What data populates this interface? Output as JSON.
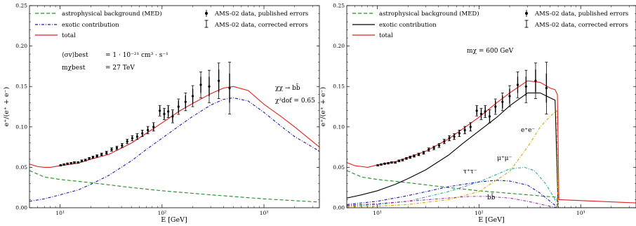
{
  "chart_data": [
    {
      "type": "line",
      "xscale": "log",
      "xlim": [
        5,
        3500
      ],
      "ylim": [
        0.0,
        0.25
      ],
      "xlabel": "E [GeV]",
      "ylabel": "e⁺/(e⁺ + e⁻)",
      "yticks": [
        "0.00",
        "0.05",
        "0.10",
        "0.15",
        "0.20",
        "0.25"
      ],
      "xticks": [
        {
          "v": 10,
          "label": "10¹"
        },
        {
          "v": 100,
          "label": "10²"
        },
        {
          "v": 1000,
          "label": "10³"
        }
      ],
      "legend": {
        "left": [
          {
            "label": "astrophysical background (MED)",
            "style": "dashed",
            "color": "#1e8c1e"
          },
          {
            "label": "exotic contribution",
            "style": "dashdot",
            "color": "#1a1aa6"
          },
          {
            "label": "total",
            "style": "solid",
            "color": "#e0201c"
          }
        ],
        "right": [
          {
            "label": "AMS-02 data, published errors",
            "marker": "dot"
          },
          {
            "label": "AMS-02 data, corrected errors",
            "marker": "bar"
          }
        ]
      },
      "annotations": {
        "sigma_label": "⟨σv⟩best",
        "sigma_value": "=  1 · 10⁻²¹ cm³ · s⁻¹",
        "mass_label": "mχbest",
        "mass_value": "=  27 TeV",
        "channel": "χχ → bb̄",
        "chi2": "χ²dof = 0.65"
      },
      "series": [
        {
          "name": "astrophysical background (MED)",
          "color": "#1e8c1e",
          "style": "dashed",
          "points": [
            [
              5,
              0.046
            ],
            [
              7,
              0.038
            ],
            [
              10,
              0.035
            ],
            [
              20,
              0.031
            ],
            [
              50,
              0.025
            ],
            [
              100,
              0.021
            ],
            [
              300,
              0.016
            ],
            [
              1000,
              0.011
            ],
            [
              3500,
              0.007
            ]
          ]
        },
        {
          "name": "exotic contribution",
          "color": "#1a1aa6",
          "style": "dashdot",
          "points": [
            [
              5,
              0.008
            ],
            [
              7,
              0.011
            ],
            [
              10,
              0.016
            ],
            [
              15,
              0.022
            ],
            [
              20,
              0.029
            ],
            [
              30,
              0.04
            ],
            [
              50,
              0.058
            ],
            [
              70,
              0.072
            ],
            [
              100,
              0.086
            ],
            [
              150,
              0.102
            ],
            [
              200,
              0.113
            ],
            [
              300,
              0.127
            ],
            [
              400,
              0.134
            ],
            [
              500,
              0.136
            ],
            [
              700,
              0.132
            ],
            [
              1000,
              0.118
            ],
            [
              1500,
              0.1
            ],
            [
              2000,
              0.088
            ],
            [
              3500,
              0.07
            ]
          ]
        },
        {
          "name": "total",
          "color": "#e0201c",
          "style": "solid",
          "points": [
            [
              5,
              0.054
            ],
            [
              6,
              0.051
            ],
            [
              7,
              0.05
            ],
            [
              8,
              0.05
            ],
            [
              10,
              0.052
            ],
            [
              15,
              0.055
            ],
            [
              20,
              0.06
            ],
            [
              30,
              0.066
            ],
            [
              50,
              0.08
            ],
            [
              70,
              0.092
            ],
            [
              100,
              0.105
            ],
            [
              150,
              0.12
            ],
            [
              200,
              0.129
            ],
            [
              300,
              0.141
            ],
            [
              400,
              0.148
            ],
            [
              500,
              0.15
            ],
            [
              700,
              0.145
            ],
            [
              1000,
              0.128
            ],
            [
              1500,
              0.112
            ],
            [
              2000,
              0.1
            ],
            [
              3500,
              0.075
            ]
          ]
        }
      ]
    },
    {
      "type": "line",
      "xscale": "log",
      "xlim": [
        5,
        3500
      ],
      "ylim": [
        0.0,
        0.25
      ],
      "xlabel": "E [GeV]",
      "ylabel": "e⁺/(e⁺ + e⁻)",
      "yticks": [
        "0.00",
        "0.05",
        "0.10",
        "0.15",
        "0.20",
        "0.25"
      ],
      "xticks": [
        {
          "v": 10,
          "label": "10¹"
        },
        {
          "v": 100,
          "label": "10²"
        },
        {
          "v": 1000,
          "label": "10³"
        }
      ],
      "legend": {
        "left": [
          {
            "label": "astrophysical background (MED)",
            "style": "dashed",
            "color": "#1e8c1e"
          },
          {
            "label": "exotic contribution",
            "style": "solid",
            "color": "#000000"
          },
          {
            "label": "total",
            "style": "solid",
            "color": "#e0201c"
          }
        ],
        "right": [
          {
            "label": "AMS-02 data, published errors",
            "marker": "dot"
          },
          {
            "label": "AMS-02 data, corrected errors",
            "marker": "bar"
          }
        ]
      },
      "annotations": {
        "mass": "mχ = 600 GeV",
        "ee": "e⁺e⁻",
        "mumu": "μ⁺μ⁻",
        "tautau": "τ⁺τ⁻",
        "bb": "bb̄"
      },
      "series": [
        {
          "name": "astrophysical background (MED)",
          "color": "#1e8c1e",
          "style": "dashed",
          "points": [
            [
              5,
              0.046
            ],
            [
              7,
              0.038
            ],
            [
              10,
              0.035
            ],
            [
              20,
              0.031
            ],
            [
              50,
              0.025
            ],
            [
              100,
              0.021
            ],
            [
              300,
              0.016
            ],
            [
              580,
              0.013
            ],
            [
              600,
              0.0
            ],
            [
              3500,
              0.0
            ]
          ]
        },
        {
          "name": "exotic contribution",
          "color": "#000000",
          "style": "solid",
          "points": [
            [
              5,
              0.012
            ],
            [
              7,
              0.016
            ],
            [
              10,
              0.021
            ],
            [
              15,
              0.029
            ],
            [
              20,
              0.036
            ],
            [
              30,
              0.047
            ],
            [
              50,
              0.065
            ],
            [
              70,
              0.08
            ],
            [
              100,
              0.095
            ],
            [
              150,
              0.112
            ],
            [
              200,
              0.126
            ],
            [
              300,
              0.142
            ],
            [
              400,
              0.142
            ],
            [
              500,
              0.136
            ],
            [
              560,
              0.133
            ],
            [
              600,
              0.0
            ],
            [
              3500,
              0.0
            ]
          ]
        },
        {
          "name": "total",
          "color": "#e0201c",
          "style": "solid",
          "points": [
            [
              5,
              0.056
            ],
            [
              6,
              0.052
            ],
            [
              7,
              0.051
            ],
            [
              8,
              0.05
            ],
            [
              10,
              0.053
            ],
            [
              15,
              0.057
            ],
            [
              20,
              0.062
            ],
            [
              30,
              0.07
            ],
            [
              50,
              0.085
            ],
            [
              70,
              0.098
            ],
            [
              100,
              0.112
            ],
            [
              150,
              0.13
            ],
            [
              200,
              0.142
            ],
            [
              300,
              0.157
            ],
            [
              400,
              0.155
            ],
            [
              500,
              0.148
            ],
            [
              560,
              0.146
            ],
            [
              590,
              0.14
            ],
            [
              610,
              0.01
            ],
            [
              3500,
              0.006
            ]
          ]
        },
        {
          "name": "e⁺e⁻",
          "color": "#d9a400",
          "style": "dashdot",
          "points": [
            [
              5,
              0.001
            ],
            [
              10,
              0.002
            ],
            [
              20,
              0.004
            ],
            [
              50,
              0.01
            ],
            [
              100,
              0.02
            ],
            [
              200,
              0.045
            ],
            [
              300,
              0.075
            ],
            [
              400,
              0.1
            ],
            [
              500,
              0.113
            ],
            [
              580,
              0.12
            ],
            [
              600,
              0.0
            ]
          ]
        },
        {
          "name": "μ⁺μ⁻",
          "color": "#1fa6a6",
          "style": "dashdot",
          "points": [
            [
              5,
              0.002
            ],
            [
              10,
              0.004
            ],
            [
              20,
              0.008
            ],
            [
              50,
              0.02
            ],
            [
              100,
              0.032
            ],
            [
              200,
              0.048
            ],
            [
              280,
              0.05
            ],
            [
              350,
              0.046
            ],
            [
              450,
              0.03
            ],
            [
              550,
              0.012
            ],
            [
              600,
              0.0
            ]
          ]
        },
        {
          "name": "τ⁺τ⁻",
          "color": "#1a1aa6",
          "style": "dashdot",
          "points": [
            [
              5,
              0.004
            ],
            [
              10,
              0.008
            ],
            [
              20,
              0.015
            ],
            [
              50,
              0.026
            ],
            [
              100,
              0.032
            ],
            [
              150,
              0.034
            ],
            [
              200,
              0.033
            ],
            [
              300,
              0.028
            ],
            [
              400,
              0.018
            ],
            [
              500,
              0.008
            ],
            [
              600,
              0.0
            ]
          ]
        },
        {
          "name": "bb̄",
          "color": "#9a2ea6",
          "style": "dashdot",
          "points": [
            [
              5,
              0.003
            ],
            [
              10,
              0.005
            ],
            [
              20,
              0.008
            ],
            [
              50,
              0.012
            ],
            [
              80,
              0.014
            ],
            [
              120,
              0.014
            ],
            [
              200,
              0.012
            ],
            [
              300,
              0.008
            ],
            [
              450,
              0.003
            ],
            [
              600,
              0.0
            ]
          ]
        }
      ]
    }
  ],
  "ams_data": [
    {
      "e": 10.1,
      "y": 0.0525,
      "pe": 0.0008,
      "ce": 0.0008
    },
    {
      "e": 10.9,
      "y": 0.0535,
      "pe": 0.0008,
      "ce": 0.0008
    },
    {
      "e": 11.8,
      "y": 0.0545,
      "pe": 0.0008,
      "ce": 0.0008
    },
    {
      "e": 12.8,
      "y": 0.055,
      "pe": 0.0008,
      "ce": 0.0009
    },
    {
      "e": 13.8,
      "y": 0.056,
      "pe": 0.0009,
      "ce": 0.0009
    },
    {
      "e": 15.0,
      "y": 0.056,
      "pe": 0.0009,
      "ce": 0.001
    },
    {
      "e": 16.3,
      "y": 0.058,
      "pe": 0.001,
      "ce": 0.0011
    },
    {
      "e": 17.7,
      "y": 0.059,
      "pe": 0.001,
      "ce": 0.0011
    },
    {
      "e": 19.3,
      "y": 0.061,
      "pe": 0.0011,
      "ce": 0.0012
    },
    {
      "e": 21.0,
      "y": 0.0625,
      "pe": 0.0012,
      "ce": 0.0013
    },
    {
      "e": 23.0,
      "y": 0.064,
      "pe": 0.0013,
      "ce": 0.0014
    },
    {
      "e": 25.5,
      "y": 0.066,
      "pe": 0.0014,
      "ce": 0.0016
    },
    {
      "e": 28.5,
      "y": 0.068,
      "pe": 0.0016,
      "ce": 0.0018
    },
    {
      "e": 32.0,
      "y": 0.072,
      "pe": 0.0018,
      "ce": 0.002
    },
    {
      "e": 36.0,
      "y": 0.074,
      "pe": 0.002,
      "ce": 0.0022
    },
    {
      "e": 40.5,
      "y": 0.077,
      "pe": 0.0022,
      "ce": 0.0025
    },
    {
      "e": 45.5,
      "y": 0.082,
      "pe": 0.0025,
      "ce": 0.0028
    },
    {
      "e": 51.0,
      "y": 0.086,
      "pe": 0.0028,
      "ce": 0.0032
    },
    {
      "e": 57.0,
      "y": 0.088,
      "pe": 0.0031,
      "ce": 0.0036
    },
    {
      "e": 64.0,
      "y": 0.092,
      "pe": 0.0035,
      "ce": 0.004
    },
    {
      "e": 72.5,
      "y": 0.096,
      "pe": 0.004,
      "ce": 0.0046
    },
    {
      "e": 82.5,
      "y": 0.1,
      "pe": 0.0045,
      "ce": 0.0052
    },
    {
      "e": 95.0,
      "y": 0.12,
      "pe": 0.0055,
      "ce": 0.0065
    },
    {
      "e": 105.0,
      "y": 0.116,
      "pe": 0.006,
      "ce": 0.007
    },
    {
      "e": 115.0,
      "y": 0.119,
      "pe": 0.0065,
      "ce": 0.0075
    },
    {
      "e": 127.0,
      "y": 0.113,
      "pe": 0.007,
      "ce": 0.008
    },
    {
      "e": 145.0,
      "y": 0.125,
      "pe": 0.0075,
      "ce": 0.0095
    },
    {
      "e": 170.0,
      "y": 0.131,
      "pe": 0.008,
      "ce": 0.011
    },
    {
      "e": 200.0,
      "y": 0.138,
      "pe": 0.009,
      "ce": 0.013
    },
    {
      "e": 240.0,
      "y": 0.152,
      "pe": 0.01,
      "ce": 0.016
    },
    {
      "e": 290.0,
      "y": 0.15,
      "pe": 0.012,
      "ce": 0.02
    },
    {
      "e": 360.0,
      "y": 0.157,
      "pe": 0.014,
      "ce": 0.022
    },
    {
      "e": 460.0,
      "y": 0.148,
      "pe": 0.018,
      "ce": 0.032
    }
  ]
}
